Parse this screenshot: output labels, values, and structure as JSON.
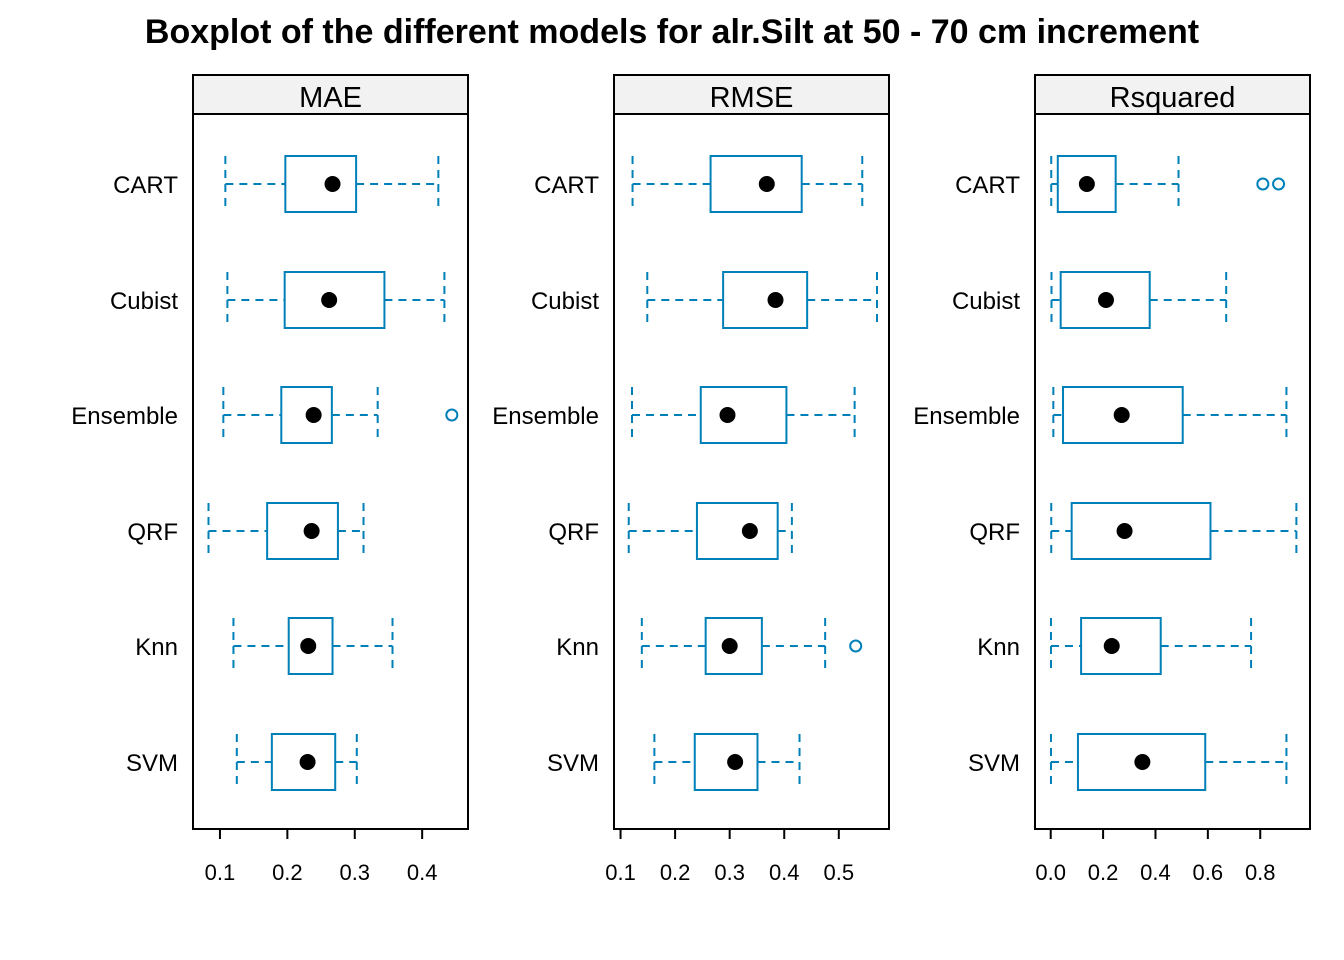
{
  "title": "Boxplot of the different models for alr.Silt at 50 - 70 cm increment",
  "colors": {
    "box": "#0080b8",
    "median_dot": "#000000",
    "strip_bg": "#f2f2f2",
    "frame": "#000000"
  },
  "chart_data": {
    "type": "boxplot",
    "orientation": "horizontal",
    "title": "Boxplot of the different models for alr.Silt at 50 - 70 cm increment",
    "categories": [
      "CART",
      "Cubist",
      "Ensemble",
      "QRF",
      "Knn",
      "SVM"
    ],
    "panels": [
      {
        "name": "MAE",
        "xlim": [
          0.06,
          0.468
        ],
        "ticks": [
          0.1,
          0.2,
          0.3,
          0.4
        ],
        "tick_labels": [
          "0.1",
          "0.2",
          "0.3",
          "0.4"
        ],
        "boxes": [
          {
            "category": "CART",
            "min": 0.108,
            "q1": 0.197,
            "median": 0.267,
            "q3": 0.302,
            "max": 0.424,
            "outliers": []
          },
          {
            "category": "Cubist",
            "min": 0.111,
            "q1": 0.196,
            "median": 0.262,
            "q3": 0.344,
            "max": 0.433,
            "outliers": []
          },
          {
            "category": "Ensemble",
            "min": 0.105,
            "q1": 0.191,
            "median": 0.239,
            "q3": 0.266,
            "max": 0.334,
            "outliers": [
              0.444
            ]
          },
          {
            "category": "QRF",
            "min": 0.083,
            "q1": 0.17,
            "median": 0.236,
            "q3": 0.275,
            "max": 0.313,
            "outliers": []
          },
          {
            "category": "Knn",
            "min": 0.12,
            "q1": 0.202,
            "median": 0.231,
            "q3": 0.267,
            "max": 0.356,
            "outliers": []
          },
          {
            "category": "SVM",
            "min": 0.125,
            "q1": 0.177,
            "median": 0.23,
            "q3": 0.271,
            "max": 0.303,
            "outliers": []
          }
        ]
      },
      {
        "name": "RMSE",
        "xlim": [
          0.088,
          0.592
        ],
        "ticks": [
          0.1,
          0.2,
          0.3,
          0.4,
          0.5
        ],
        "tick_labels": [
          "0.1",
          "0.2",
          "0.3",
          "0.4",
          "0.5"
        ],
        "boxes": [
          {
            "category": "CART",
            "min": 0.122,
            "q1": 0.265,
            "median": 0.368,
            "q3": 0.432,
            "max": 0.543,
            "outliers": []
          },
          {
            "category": "Cubist",
            "min": 0.149,
            "q1": 0.288,
            "median": 0.384,
            "q3": 0.442,
            "max": 0.57,
            "outliers": []
          },
          {
            "category": "Ensemble",
            "min": 0.121,
            "q1": 0.247,
            "median": 0.296,
            "q3": 0.404,
            "max": 0.529,
            "outliers": []
          },
          {
            "category": "QRF",
            "min": 0.115,
            "q1": 0.24,
            "median": 0.337,
            "q3": 0.388,
            "max": 0.414,
            "outliers": []
          },
          {
            "category": "Knn",
            "min": 0.139,
            "q1": 0.256,
            "median": 0.3,
            "q3": 0.359,
            "max": 0.475,
            "outliers": [
              0.531
            ]
          },
          {
            "category": "SVM",
            "min": 0.162,
            "q1": 0.236,
            "median": 0.31,
            "q3": 0.351,
            "max": 0.428,
            "outliers": []
          }
        ]
      },
      {
        "name": "Rsquared",
        "xlim": [
          -0.06,
          0.99
        ],
        "ticks": [
          0.0,
          0.2,
          0.4,
          0.6,
          0.8
        ],
        "tick_labels": [
          "0.0",
          "0.2",
          "0.4",
          "0.6",
          "0.8"
        ],
        "boxes": [
          {
            "category": "CART",
            "min": 0.002,
            "q1": 0.027,
            "median": 0.138,
            "q3": 0.248,
            "max": 0.488,
            "outliers": [
              0.81,
              0.87
            ]
          },
          {
            "category": "Cubist",
            "min": 0.003,
            "q1": 0.038,
            "median": 0.211,
            "q3": 0.378,
            "max": 0.67,
            "outliers": []
          },
          {
            "category": "Ensemble",
            "min": 0.01,
            "q1": 0.047,
            "median": 0.271,
            "q3": 0.504,
            "max": 0.9,
            "outliers": []
          },
          {
            "category": "QRF",
            "min": 0.002,
            "q1": 0.08,
            "median": 0.282,
            "q3": 0.61,
            "max": 0.938,
            "outliers": []
          },
          {
            "category": "Knn",
            "min": 0.001,
            "q1": 0.116,
            "median": 0.233,
            "q3": 0.42,
            "max": 0.765,
            "outliers": []
          },
          {
            "category": "SVM",
            "min": 0.001,
            "q1": 0.104,
            "median": 0.35,
            "q3": 0.59,
            "max": 0.9,
            "outliers": []
          }
        ]
      }
    ]
  }
}
